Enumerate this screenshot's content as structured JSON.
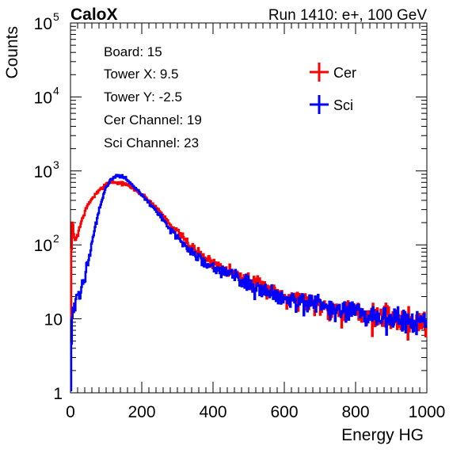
{
  "header": {
    "left_title": "CaloX",
    "right_title": "Run 1410: e+, 100 GeV"
  },
  "info_box": [
    "Board: 15",
    "Tower X: 9.5",
    "Tower Y: -2.5",
    "Cer Channel: 19",
    "Sci Channel: 23"
  ],
  "chart_data": {
    "type": "line",
    "title": "",
    "xlabel": "Energy HG",
    "ylabel": "Counts",
    "xlim": [
      0,
      1000
    ],
    "ylim": [
      1,
      100000
    ],
    "yscale": "log",
    "grid": false,
    "legend_position": "top-right",
    "x_ticks": [
      0,
      200,
      400,
      600,
      800,
      1000
    ],
    "x_tick_labels": [
      "0",
      "200",
      "400",
      "600",
      "800",
      "1000"
    ],
    "y_tick_labels": [
      {
        "value": 1,
        "base": "1",
        "exp": ""
      },
      {
        "value": 10,
        "base": "10",
        "exp": ""
      },
      {
        "value": 100,
        "base": "10",
        "exp": "2"
      },
      {
        "value": 1000,
        "base": "10",
        "exp": "3"
      },
      {
        "value": 10000,
        "base": "10",
        "exp": "4"
      },
      {
        "value": 100000,
        "base": "10",
        "exp": "5"
      }
    ],
    "series": [
      {
        "name": "Cer",
        "color": "#ff0000",
        "x": [
          0,
          4,
          8,
          12,
          20,
          30,
          40,
          50,
          60,
          70,
          80,
          90,
          100,
          110,
          120,
          130,
          140,
          150,
          160,
          170,
          180,
          200,
          220,
          240,
          260,
          280,
          300,
          320,
          340,
          360,
          380,
          400,
          420,
          440,
          460,
          480,
          500,
          520,
          540,
          560,
          580,
          600,
          620,
          640,
          660,
          680,
          700,
          720,
          740,
          760,
          780,
          800,
          820,
          840,
          860,
          880,
          900,
          920,
          940,
          960,
          980,
          1000
        ],
        "y": [
          3,
          250,
          150,
          110,
          140,
          200,
          280,
          350,
          420,
          480,
          530,
          600,
          680,
          700,
          710,
          690,
          680,
          670,
          640,
          600,
          560,
          480,
          400,
          320,
          250,
          190,
          150,
          118,
          95,
          78,
          66,
          58,
          52,
          47,
          42,
          38,
          34,
          30,
          27,
          25,
          23,
          21,
          20,
          19,
          18,
          17,
          16,
          15,
          14,
          13.5,
          13,
          12.5,
          12,
          11.5,
          11,
          11,
          10.5,
          10,
          10,
          9.5,
          9.5,
          9
        ]
      },
      {
        "name": "Sci",
        "color": "#0000ff",
        "x": [
          0,
          2,
          4,
          8,
          12,
          20,
          30,
          40,
          50,
          60,
          70,
          80,
          90,
          100,
          110,
          120,
          130,
          140,
          150,
          160,
          170,
          180,
          200,
          220,
          240,
          260,
          280,
          300,
          320,
          340,
          360,
          380,
          400,
          420,
          440,
          460,
          480,
          500,
          520,
          540,
          560,
          580,
          600,
          620,
          640,
          660,
          680,
          700,
          720,
          740,
          760,
          780,
          800,
          820,
          840,
          860,
          880,
          900,
          920,
          940,
          960,
          980,
          1000
        ],
        "y": [
          1,
          3,
          8,
          12,
          14,
          18,
          25,
          40,
          65,
          110,
          180,
          280,
          420,
          600,
          720,
          810,
          850,
          860,
          830,
          760,
          680,
          600,
          470,
          370,
          290,
          220,
          165,
          125,
          98,
          80,
          67,
          58,
          52,
          47,
          42,
          38,
          34,
          30,
          27,
          25,
          23,
          21,
          20,
          19,
          18,
          17,
          16,
          15,
          14,
          13.5,
          13,
          12.5,
          12,
          11.5,
          11,
          11,
          10.5,
          10,
          10,
          9.5,
          9.5,
          9,
          9
        ]
      }
    ]
  }
}
